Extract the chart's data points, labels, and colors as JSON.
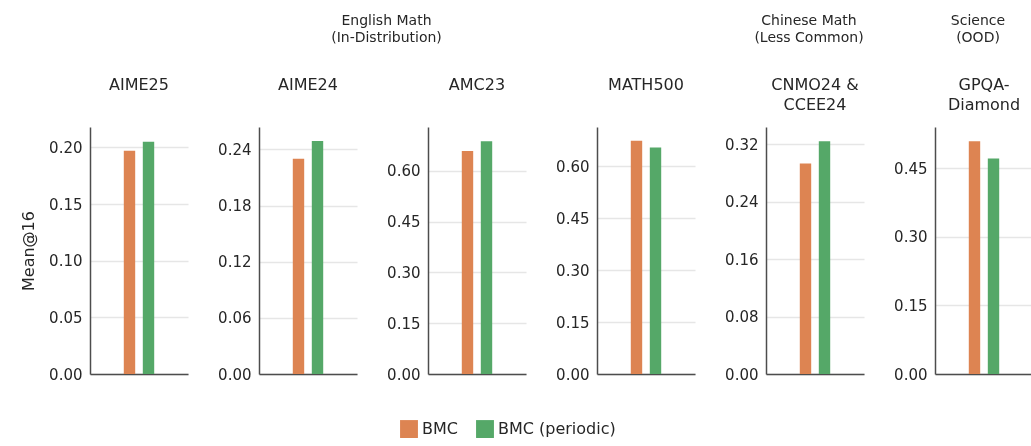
{
  "chart_data": [
    {
      "type": "bar",
      "title": "AIME25",
      "annotations": [
        "English Math\n(In-Distribution)"
      ],
      "ylabel": "Mean@16",
      "categories": [
        null
      ],
      "series": [
        {
          "name": "BMC",
          "color": "#dd8452",
          "values": [
            0.197
          ]
        },
        {
          "name": "BMC (periodic)",
          "color": "#55a868",
          "values": [
            0.205
          ]
        }
      ],
      "ylim": [
        0,
        0.218
      ],
      "yticks": [
        {
          "value": 0,
          "label": "0.00"
        },
        0.05,
        {
          "value": 0.1,
          "label": "0.10"
        },
        0.15,
        {
          "value": 0.2,
          "label": "0.20"
        }
      ],
      "grid": "y",
      "legend": "bottom",
      "tick_labels": "y"
    },
    {
      "type": "bar",
      "title": "AIME24",
      "categories": [
        null
      ],
      "series": [
        {
          "color": "#dd8452",
          "values": [
            0.23
          ]
        },
        {
          "color": "#55a868",
          "values": [
            0.249
          ]
        }
      ],
      "ylim": [
        0,
        0.264
      ],
      "yticks": [
        {
          "value": 0,
          "label": "0.00"
        },
        0.06,
        0.12,
        0.18,
        0.24
      ],
      "grid": "y",
      "tick_labels": "y"
    },
    {
      "type": "bar",
      "title": "AMC23",
      "categories": [
        null
      ],
      "series": [
        {
          "color": "#dd8452",
          "values": [
            0.659
          ]
        },
        {
          "color": "#55a868",
          "values": [
            0.688
          ]
        }
      ],
      "ylim": [
        0,
        0.73
      ],
      "yticks": [
        {
          "value": 0,
          "label": "0.00"
        },
        0.15,
        {
          "value": 0.3,
          "label": "0.30"
        },
        0.45,
        {
          "value": 0.6,
          "label": "0.60"
        }
      ],
      "grid": "y",
      "tick_labels": "y"
    },
    {
      "type": "bar",
      "title": "MATH500",
      "categories": [
        null
      ],
      "series": [
        {
          "color": "#dd8452",
          "values": [
            0.673
          ]
        },
        {
          "color": "#55a868",
          "values": [
            0.654
          ]
        }
      ],
      "ylim": [
        0,
        0.713
      ],
      "yticks": [
        {
          "value": 0,
          "label": "0.00"
        },
        0.15,
        {
          "value": 0.3,
          "label": "0.30"
        },
        0.45,
        {
          "value": 0.6,
          "label": "0.60"
        }
      ],
      "grid": "y",
      "tick_labels": "y"
    },
    {
      "type": "bar",
      "title": "CNMO24 &\nCCEE24",
      "annotations": [
        "Chinese Math\n(Less Common)"
      ],
      "categories": [
        null
      ],
      "series": [
        {
          "color": "#dd8452",
          "values": [
            0.293
          ]
        },
        {
          "color": "#55a868",
          "values": [
            0.324
          ]
        }
      ],
      "ylim": [
        0,
        0.344
      ],
      "yticks": [
        {
          "value": 0,
          "label": "0.00"
        },
        0.08,
        0.16,
        0.24,
        0.32
      ],
      "grid": "y",
      "tick_labels": "y"
    },
    {
      "type": "bar",
      "title": "GPQA-\nDiamond",
      "annotations": [
        "Science\n(OOD)"
      ],
      "categories": [
        null
      ],
      "series": [
        {
          "color": "#dd8452",
          "values": [
            0.509
          ]
        },
        {
          "color": "#55a868",
          "values": [
            0.471
          ]
        }
      ],
      "ylim": [
        0,
        0.54
      ],
      "yticks": [
        {
          "value": 0,
          "label": "0.00"
        },
        0.15,
        {
          "value": 0.3,
          "label": "0.30"
        },
        0.45
      ],
      "grid": "y",
      "tick_labels": "y"
    }
  ]
}
